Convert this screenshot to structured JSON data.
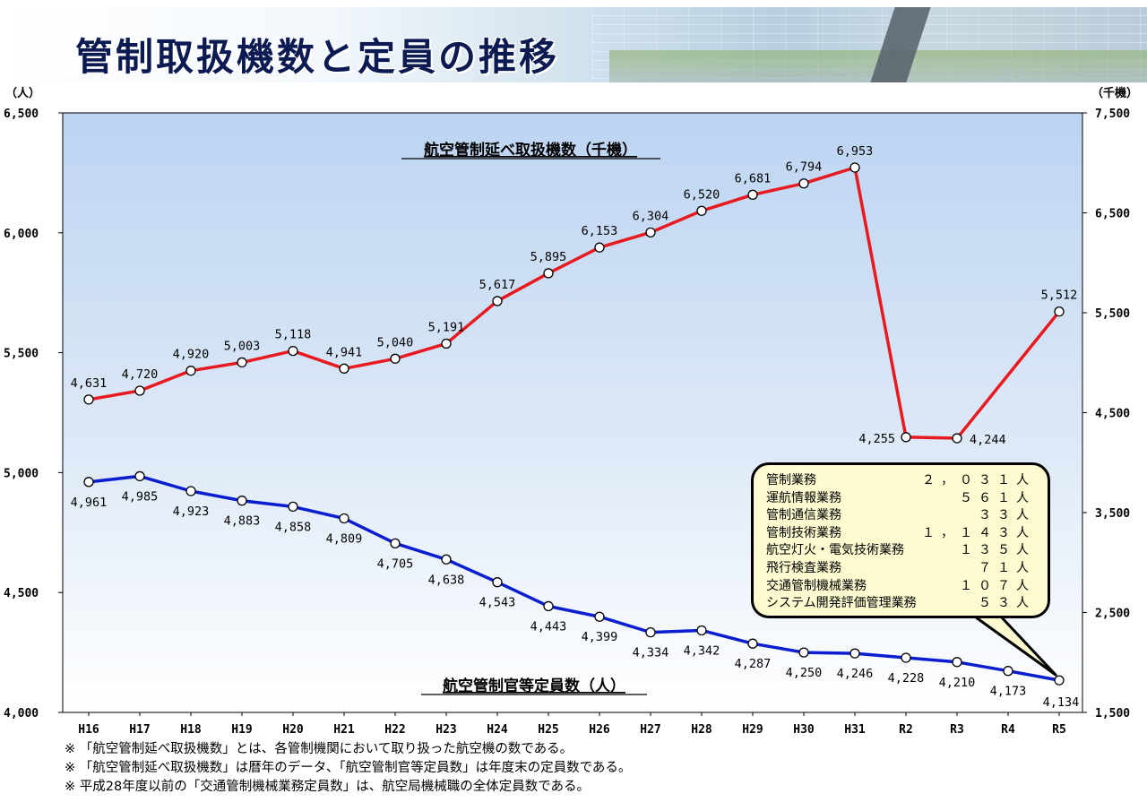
{
  "header": {
    "title": "管制取扱機数と定員の推移"
  },
  "chart_data": {
    "type": "line",
    "categories": [
      "H16",
      "H17",
      "H18",
      "H19",
      "H20",
      "H21",
      "H22",
      "H23",
      "H24",
      "H25",
      "H26",
      "H27",
      "H28",
      "H29",
      "H30",
      "H31",
      "R2",
      "R3",
      "R4",
      "R5"
    ],
    "left_axis": {
      "unit_label": "（人）",
      "ylim": [
        4000,
        6500
      ],
      "ticks": [
        "6,500",
        "6,000",
        "5,500",
        "5,000",
        "4,500",
        "4,000"
      ]
    },
    "right_axis": {
      "unit_label": "（千機）",
      "ylim": [
        1500,
        7500
      ],
      "ticks": [
        "7,500",
        "6,500",
        "5,500",
        "4,500",
        "3,500",
        "2,500",
        "1,500"
      ]
    },
    "series": [
      {
        "name": "航空管制延べ取扱機数（千機）",
        "axis": "right",
        "color": "#e8191f",
        "values": [
          4631,
          4720,
          4920,
          5003,
          5118,
          4941,
          5040,
          5191,
          5617,
          5895,
          6153,
          6304,
          6520,
          6681,
          6794,
          6953,
          4255,
          4244,
          null,
          5512
        ],
        "labels": [
          "4,631",
          "4,720",
          "4,920",
          "5,003",
          "5,118",
          "4,941",
          "5,040",
          "5,191",
          "5,617",
          "5,895",
          "6,153",
          "6,304",
          "6,520",
          "6,681",
          "6,794",
          "6,953",
          "4,255",
          "4,244",
          "",
          "5,512"
        ]
      },
      {
        "name": "航空管制官等定員数（人）",
        "axis": "left",
        "color": "#0a1ed0",
        "values": [
          4961,
          4985,
          4923,
          4883,
          4858,
          4809,
          4705,
          4638,
          4543,
          4443,
          4399,
          4334,
          4342,
          4287,
          4250,
          4246,
          4228,
          4210,
          4173,
          4134
        ],
        "labels": [
          "4,961",
          "4,985",
          "4,923",
          "4,883",
          "4,858",
          "4,809",
          "4,705",
          "4,638",
          "4,543",
          "4,443",
          "4,399",
          "4,334",
          "4,342",
          "4,287",
          "4,250",
          "4,246",
          "4,228",
          "4,210",
          "4,173",
          "4,134"
        ]
      }
    ]
  },
  "callout": {
    "rows": [
      {
        "label": "管制業務",
        "value": "２，０３１人"
      },
      {
        "label": "運航情報業務",
        "value": "５６１人"
      },
      {
        "label": "管制通信業務",
        "value": "３３人"
      },
      {
        "label": "管制技術業務",
        "value": "１，１４３人"
      },
      {
        "label": "航空灯火・電気技術業務",
        "value": "１３５人"
      },
      {
        "label": "飛行検査業務",
        "value": "７１人"
      },
      {
        "label": "交通管制機械業務",
        "value": "１０７人"
      },
      {
        "label": "システム開発評価管理業務",
        "value": "５３人"
      }
    ]
  },
  "notes": [
    "※ 「航空管制延べ取扱機数」とは、各管制機関において取り扱った航空機の数である。",
    "※ 「航空管制延べ取扱機数」は暦年のデータ、「航空管制官等定員数」は年度末の定員数である。",
    "※ 平成28年度以前の「交通管制機械業務定員数」は、航空局機械職の全体定員数である。"
  ]
}
